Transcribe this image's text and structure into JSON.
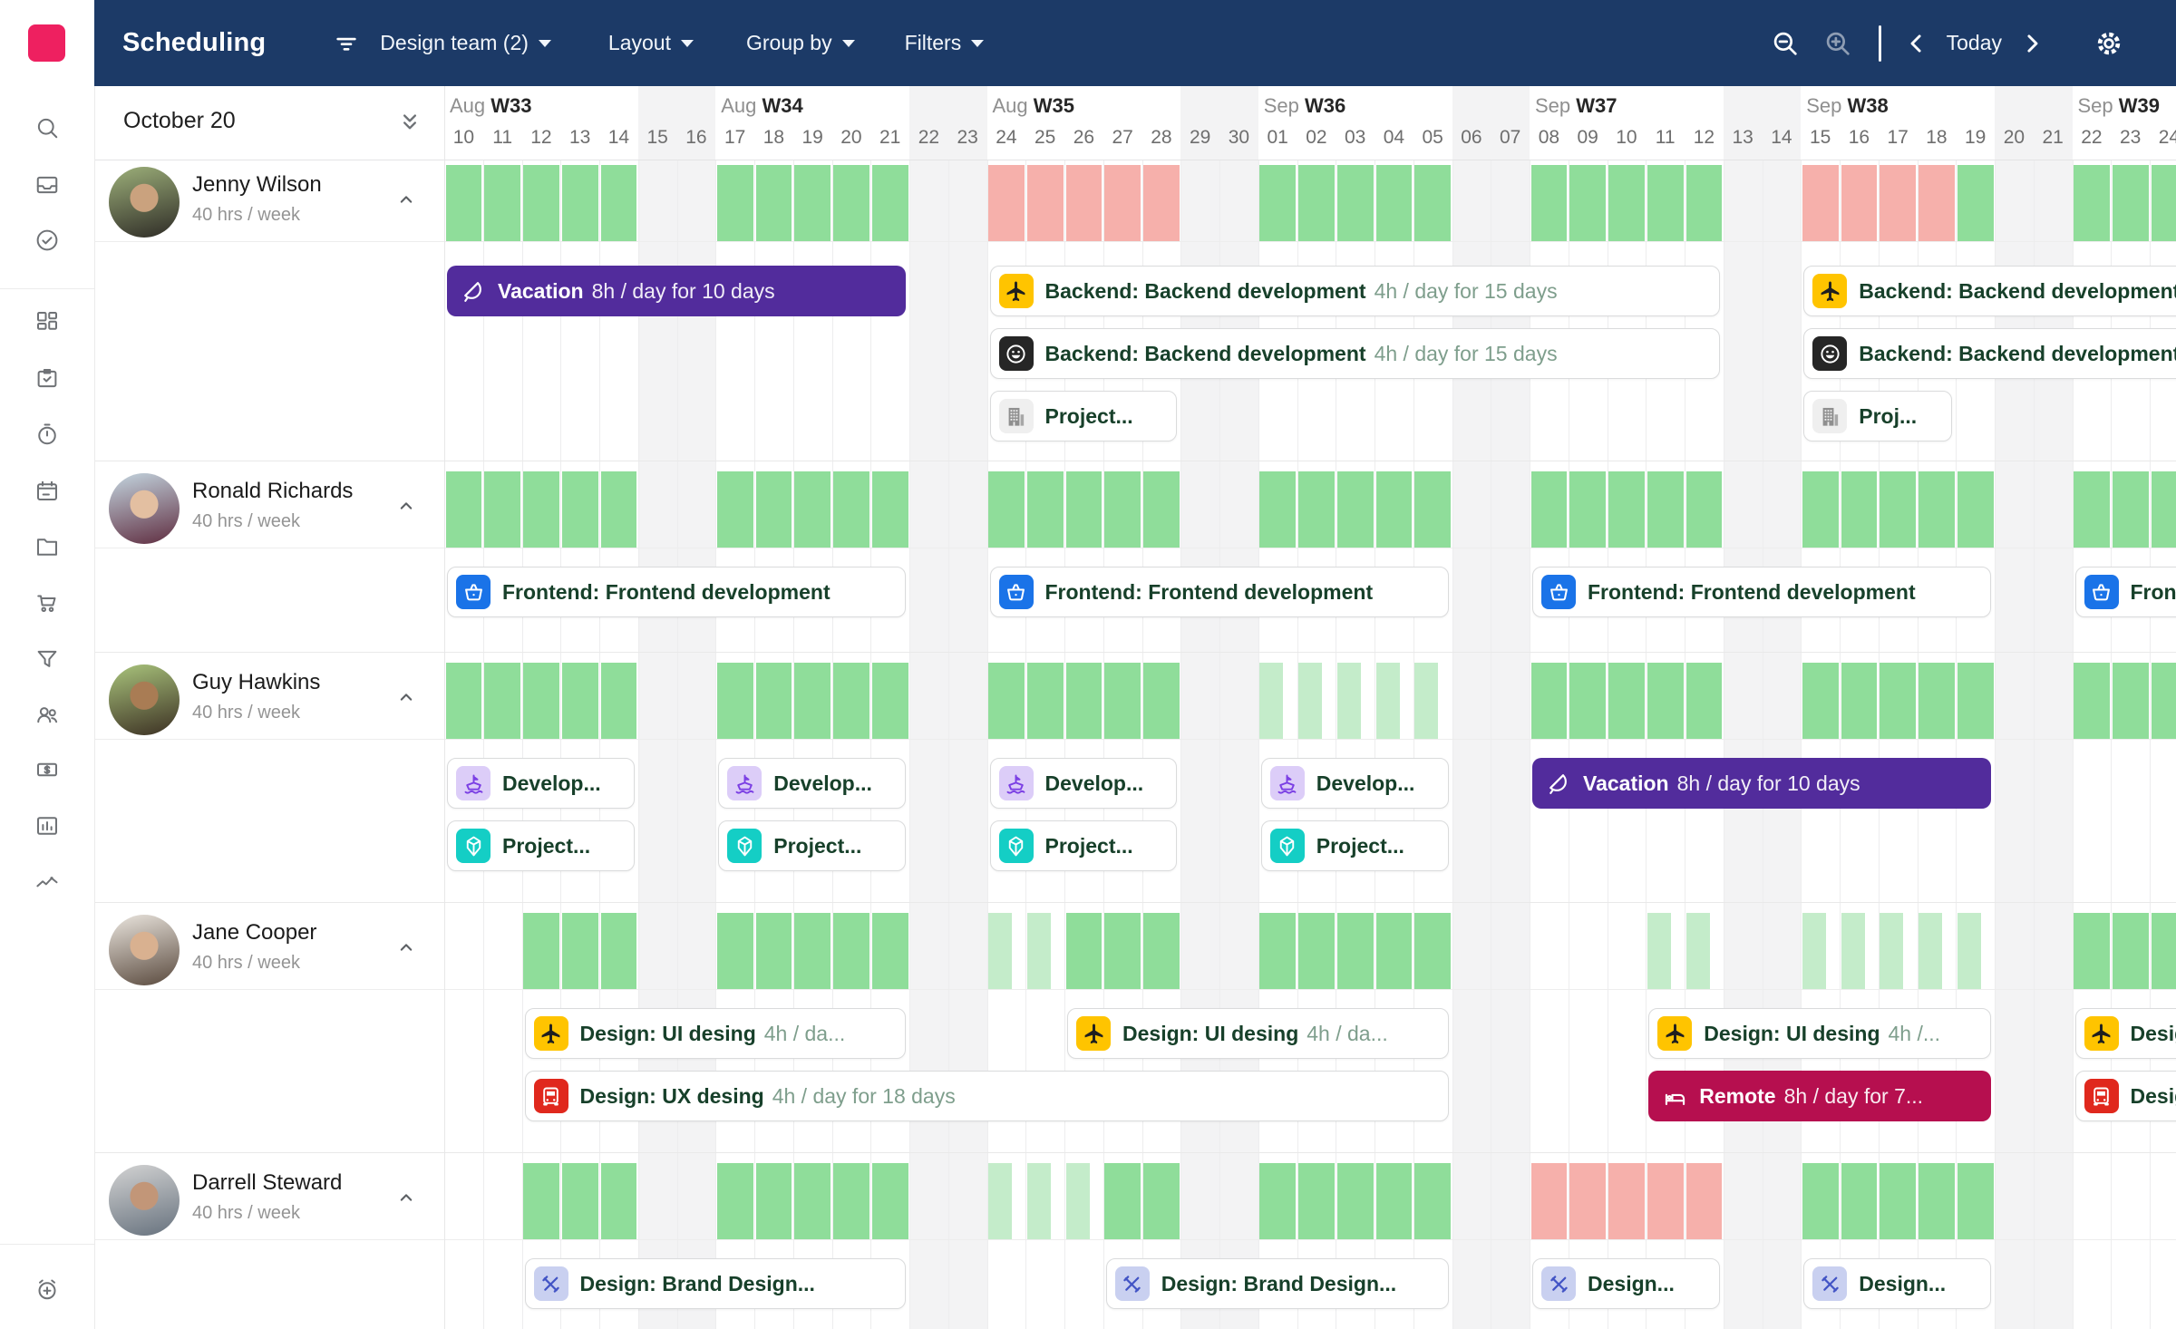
{
  "colors": {
    "topbar_bg": "#1c3a67",
    "logo": "#ee2060",
    "capacity_full": "#8fdd9a",
    "capacity_partial": "#c4ecca",
    "capacity_over": "#f6b0ab",
    "vacation_bar": "#522c9c",
    "remote_bar": "#b60f4f",
    "weekend_bg": "#f3f3f4",
    "bar_title_text": "#17402a",
    "bar_detail_text": "#7e9e8c",
    "icon_colors": {
      "plane-icon": [
        "#ffc400",
        "#1f1f1f"
      ],
      "smiley-icon": [
        "#262626",
        "#ffffff"
      ],
      "building-icon": [
        "#efefef",
        "#8f8f8f"
      ],
      "basket-icon": [
        "#1a73e8",
        "#ffffff"
      ],
      "ship-icon": [
        "#dccdf8",
        "#7b3fe4"
      ],
      "gem-icon": [
        "#14cec5",
        "#ffffff"
      ],
      "car-icon": [
        "#e0281d",
        "#ffffff"
      ],
      "cross-icon": [
        "#c9d0f0",
        "#4254c5"
      ]
    }
  },
  "topbar": {
    "app_title": "Scheduling",
    "team": "Design team (2)",
    "layout": "Layout",
    "group_by": "Group by",
    "filters": "Filters",
    "today": "Today",
    "icons": [
      "filter-lines-icon",
      "zoom-out-icon",
      "zoom-in-icon",
      "chevron-left-icon",
      "chevron-right-icon",
      "gear-icon"
    ]
  },
  "sidebar": {
    "top_icons": [
      "search-icon",
      "inbox-icon",
      "check-circle-icon"
    ],
    "main_icons": [
      "dashboard-icon",
      "clipboard-check-icon",
      "stopwatch-icon",
      "calendar-icon",
      "folder-icon",
      "cart-icon",
      "funnel-icon",
      "users-icon",
      "dollar-icon",
      "bar-chart-icon",
      "trend-icon"
    ],
    "bottom_icon": "add-timer-icon"
  },
  "panel": {
    "date_label": "October 20"
  },
  "timeline": {
    "weeks": [
      {
        "month": "Aug",
        "label": "W33",
        "days": [
          {
            "n": "10"
          },
          {
            "n": "11"
          },
          {
            "n": "12"
          },
          {
            "n": "13"
          },
          {
            "n": "14"
          },
          {
            "n": "15",
            "weekend": true
          },
          {
            "n": "16",
            "weekend": true
          }
        ]
      },
      {
        "month": "Aug",
        "label": "W34",
        "days": [
          {
            "n": "17"
          },
          {
            "n": "18"
          },
          {
            "n": "19"
          },
          {
            "n": "20"
          },
          {
            "n": "21"
          },
          {
            "n": "22",
            "weekend": true
          },
          {
            "n": "23",
            "weekend": true
          }
        ]
      },
      {
        "month": "Aug",
        "label": "W35",
        "days": [
          {
            "n": "24"
          },
          {
            "n": "25"
          },
          {
            "n": "26"
          },
          {
            "n": "27"
          },
          {
            "n": "28"
          },
          {
            "n": "29",
            "weekend": true
          },
          {
            "n": "30",
            "weekend": true
          }
        ]
      },
      {
        "month": "Sep",
        "label": "W36",
        "days": [
          {
            "n": "01"
          },
          {
            "n": "02"
          },
          {
            "n": "03"
          },
          {
            "n": "04"
          },
          {
            "n": "05"
          },
          {
            "n": "06",
            "weekend": true
          },
          {
            "n": "07",
            "weekend": true
          }
        ]
      },
      {
        "month": "Sep",
        "label": "W37",
        "days": [
          {
            "n": "08"
          },
          {
            "n": "09"
          },
          {
            "n": "10"
          },
          {
            "n": "11"
          },
          {
            "n": "12"
          },
          {
            "n": "13",
            "weekend": true
          },
          {
            "n": "14",
            "weekend": true
          }
        ]
      },
      {
        "month": "Sep",
        "label": "W38",
        "days": [
          {
            "n": "15"
          },
          {
            "n": "16"
          },
          {
            "n": "17"
          },
          {
            "n": "18"
          },
          {
            "n": "19"
          },
          {
            "n": "20",
            "weekend": true
          },
          {
            "n": "21",
            "weekend": true
          }
        ]
      },
      {
        "month": "Sep",
        "label": "W39",
        "days": [
          {
            "n": "22"
          },
          {
            "n": "23"
          },
          {
            "n": "24"
          }
        ]
      }
    ]
  },
  "people": [
    {
      "name": "Jenny Wilson",
      "hours": "40 hrs / week",
      "avatar": [
        "#9db07a",
        "#2e2b26",
        "#caa27e"
      ],
      "capacity": [
        {
          "s": 0,
          "e": 4,
          "kind": "full"
        },
        {
          "s": 7,
          "e": 11,
          "kind": "full"
        },
        {
          "s": 14,
          "e": 18,
          "kind": "over"
        },
        {
          "s": 21,
          "e": 25,
          "kind": "full"
        },
        {
          "s": 28,
          "e": 32,
          "kind": "full"
        },
        {
          "s": 35,
          "e": 38,
          "kind": "over"
        },
        {
          "s": 39,
          "e": 39,
          "kind": "full"
        },
        {
          "s": 42,
          "e": 44,
          "kind": "full"
        }
      ],
      "lines": [
        [
          {
            "type": "timeoff",
            "color": "vacation_bar",
            "icon": "kite-icon",
            "title": "Vacation",
            "detail": "8h / day for 10 days",
            "s": 0,
            "span": 12
          },
          {
            "type": "task",
            "icon": "plane-icon",
            "title": "Backend: Backend development",
            "detail": "4h / day for 15 days",
            "s": 14,
            "span": 19
          },
          {
            "type": "task",
            "icon": "plane-icon",
            "title": "Backend: Backend development",
            "detail": "",
            "s": 35,
            "span": 11
          }
        ],
        [
          {
            "type": "task",
            "icon": "smiley-icon",
            "title": "Backend: Backend development",
            "detail": "4h / day for 15 days",
            "s": 14,
            "span": 19
          },
          {
            "type": "task",
            "icon": "smiley-icon",
            "title": "Backend: Backend development",
            "detail": "",
            "s": 35,
            "span": 11
          }
        ],
        [
          {
            "type": "task",
            "icon": "building-icon",
            "title": "Project...",
            "detail": "",
            "s": 14,
            "span": 5
          },
          {
            "type": "task",
            "icon": "building-icon",
            "title": "Proj...",
            "detail": "",
            "s": 35,
            "span": 4
          }
        ]
      ]
    },
    {
      "name": "Ronald Richards",
      "hours": "40 hrs / week",
      "avatar": [
        "#c4d6e0",
        "#5f2d40",
        "#e3bfa1"
      ],
      "capacity": [
        {
          "s": 0,
          "e": 4,
          "kind": "full"
        },
        {
          "s": 7,
          "e": 11,
          "kind": "full"
        },
        {
          "s": 14,
          "e": 18,
          "kind": "full"
        },
        {
          "s": 21,
          "e": 25,
          "kind": "full"
        },
        {
          "s": 28,
          "e": 32,
          "kind": "full"
        },
        {
          "s": 35,
          "e": 39,
          "kind": "full"
        },
        {
          "s": 42,
          "e": 44,
          "kind": "full"
        }
      ],
      "lines": [
        [
          {
            "type": "task",
            "icon": "basket-icon",
            "title": "Frontend: Frontend development",
            "detail": "",
            "s": 0,
            "span": 12
          },
          {
            "type": "task",
            "icon": "basket-icon",
            "title": "Frontend: Frontend development",
            "detail": "",
            "s": 14,
            "span": 12
          },
          {
            "type": "task",
            "icon": "basket-icon",
            "title": "Frontend: Frontend development",
            "detail": "",
            "s": 28,
            "span": 12
          },
          {
            "type": "task",
            "icon": "basket-icon",
            "title": "Frontend: Frontend development",
            "detail": "",
            "s": 42,
            "span": 5
          }
        ]
      ]
    },
    {
      "name": "Guy Hawkins",
      "hours": "40 hrs / week",
      "avatar": [
        "#a9c47c",
        "#3c3023",
        "#a97c54"
      ],
      "capacity": [
        {
          "s": 0,
          "e": 4,
          "kind": "full"
        },
        {
          "s": 7,
          "e": 11,
          "kind": "full"
        },
        {
          "s": 14,
          "e": 18,
          "kind": "full"
        },
        {
          "s": 21,
          "e": 25,
          "kind": "light"
        },
        {
          "s": 28,
          "e": 32,
          "kind": "full"
        },
        {
          "s": 35,
          "e": 39,
          "kind": "full"
        },
        {
          "s": 42,
          "e": 44,
          "kind": "full"
        }
      ],
      "lines": [
        [
          {
            "type": "task",
            "icon": "ship-icon",
            "title": "Develop...",
            "detail": "",
            "s": 0,
            "span": 5
          },
          {
            "type": "task",
            "icon": "ship-icon",
            "title": "Develop...",
            "detail": "",
            "s": 7,
            "span": 5
          },
          {
            "type": "task",
            "icon": "ship-icon",
            "title": "Develop...",
            "detail": "",
            "s": 14,
            "span": 5
          },
          {
            "type": "task",
            "icon": "ship-icon",
            "title": "Develop...",
            "detail": "",
            "s": 21,
            "span": 5
          },
          {
            "type": "timeoff",
            "color": "vacation_bar",
            "icon": "kite-icon",
            "title": "Vacation",
            "detail": "8h / day for 10 days",
            "s": 28,
            "span": 12
          }
        ],
        [
          {
            "type": "task",
            "icon": "gem-icon",
            "title": "Project...",
            "detail": "",
            "s": 0,
            "span": 5
          },
          {
            "type": "task",
            "icon": "gem-icon",
            "title": "Project...",
            "detail": "",
            "s": 7,
            "span": 5
          },
          {
            "type": "task",
            "icon": "gem-icon",
            "title": "Project...",
            "detail": "",
            "s": 14,
            "span": 5
          },
          {
            "type": "task",
            "icon": "gem-icon",
            "title": "Project...",
            "detail": "",
            "s": 21,
            "span": 5
          }
        ]
      ]
    },
    {
      "name": "Jane Cooper",
      "hours": "40 hrs / week",
      "avatar": [
        "#eae5de",
        "#5a4a3e",
        "#d9b190"
      ],
      "capacity": [
        {
          "s": 2,
          "e": 4,
          "kind": "full"
        },
        {
          "s": 7,
          "e": 11,
          "kind": "full"
        },
        {
          "s": 14,
          "e": 15,
          "kind": "light"
        },
        {
          "s": 16,
          "e": 18,
          "kind": "full"
        },
        {
          "s": 21,
          "e": 25,
          "kind": "full"
        },
        {
          "s": 31,
          "e": 32,
          "kind": "light"
        },
        {
          "s": 35,
          "e": 39,
          "kind": "light"
        },
        {
          "s": 42,
          "e": 44,
          "kind": "full"
        }
      ],
      "lines": [
        [
          {
            "type": "task",
            "icon": "plane-icon",
            "title": "Design: UI desing",
            "detail": "4h / da...",
            "s": 2,
            "span": 10
          },
          {
            "type": "task",
            "icon": "plane-icon",
            "title": "Design: UI desing",
            "detail": "4h / da...",
            "s": 16,
            "span": 10
          },
          {
            "type": "task",
            "icon": "plane-icon",
            "title": "Design: UI desing",
            "detail": "4h /...",
            "s": 31,
            "span": 9
          },
          {
            "type": "task",
            "icon": "plane-icon",
            "title": "Design: UI desing",
            "detail": "",
            "s": 42,
            "span": 5
          }
        ],
        [
          {
            "type": "task",
            "icon": "car-icon",
            "title": "Design: UX desing",
            "detail": "4h / day for 18 days",
            "s": 2,
            "span": 24
          },
          {
            "type": "timeoff",
            "color": "remote_bar",
            "icon": "bed-icon",
            "title": "Remote",
            "detail": "8h / day for 7...",
            "s": 31,
            "span": 9
          },
          {
            "type": "task",
            "icon": "car-icon",
            "title": "Design: UX desing",
            "detail": "",
            "s": 42,
            "span": 5
          }
        ]
      ]
    },
    {
      "name": "Darrell Steward",
      "hours": "40 hrs / week",
      "avatar": [
        "#d3d3d3",
        "#67727e",
        "#c29678"
      ],
      "capacity": [
        {
          "s": 2,
          "e": 4,
          "kind": "full"
        },
        {
          "s": 7,
          "e": 11,
          "kind": "full"
        },
        {
          "s": 14,
          "e": 16,
          "kind": "light"
        },
        {
          "s": 17,
          "e": 18,
          "kind": "full"
        },
        {
          "s": 21,
          "e": 25,
          "kind": "full"
        },
        {
          "s": 28,
          "e": 32,
          "kind": "over"
        },
        {
          "s": 35,
          "e": 39,
          "kind": "full"
        }
      ],
      "lines": [
        [
          {
            "type": "task",
            "icon": "cross-icon",
            "title": "Design: Brand Design...",
            "detail": "",
            "s": 2,
            "span": 10
          },
          {
            "type": "task",
            "icon": "cross-icon",
            "title": "Design: Brand Design...",
            "detail": "",
            "s": 17,
            "span": 9
          },
          {
            "type": "task",
            "icon": "cross-icon",
            "title": "Design...",
            "detail": "",
            "s": 28,
            "span": 5
          },
          {
            "type": "task",
            "icon": "cross-icon",
            "title": "Design...",
            "detail": "",
            "s": 35,
            "span": 5
          }
        ]
      ]
    }
  ]
}
